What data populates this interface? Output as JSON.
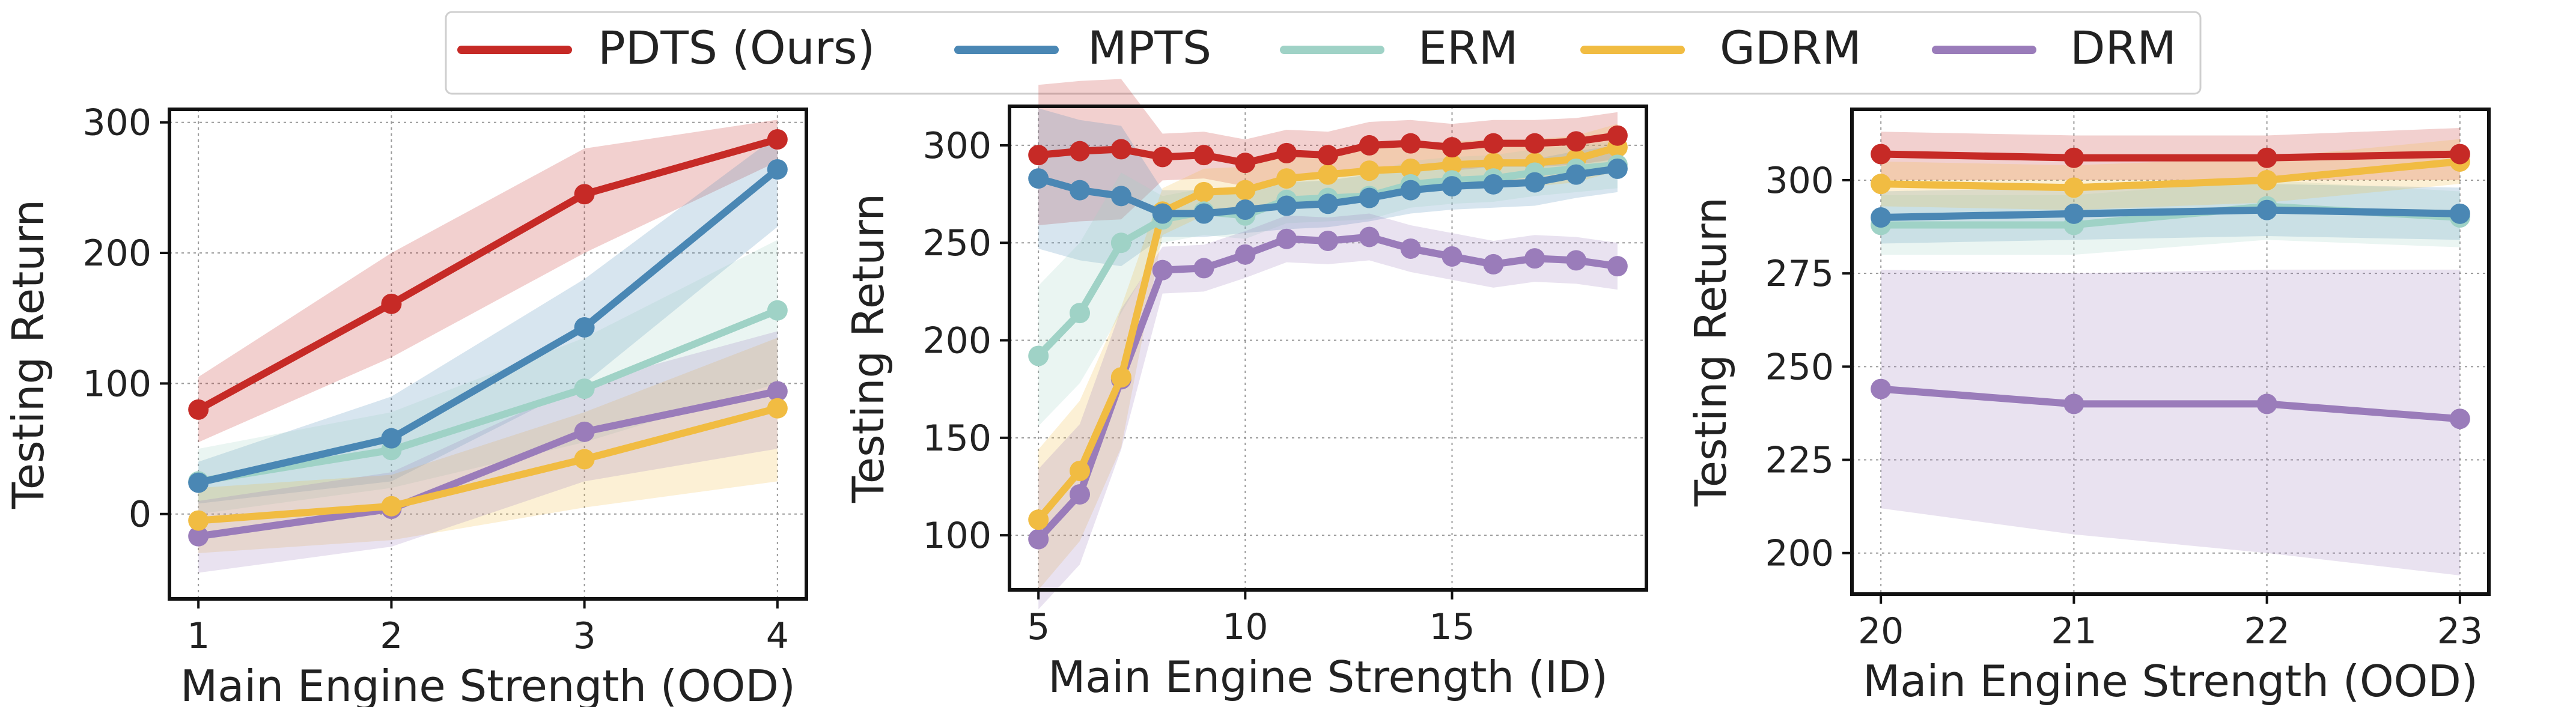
{
  "colors": {
    "PDTS (Ours)": "#c62a26",
    "MPTS": "#4a87b4",
    "ERM": "#9fd2c6",
    "GDRM": "#f1bc42",
    "DRM": "#9a7cba"
  },
  "legend": {
    "placement": "top-center",
    "entries": [
      "PDTS (Ours)",
      "MPTS",
      "ERM",
      "GDRM",
      "DRM"
    ]
  },
  "chart_data": [
    {
      "type": "line",
      "xlabel": "Main Engine Strength (OOD)",
      "ylabel": "Testing Return",
      "xlim": [
        0.85,
        4.15
      ],
      "ylim": [
        -65,
        310
      ],
      "xticks": [
        1,
        2,
        3,
        4
      ],
      "yticks": [
        0,
        100,
        200,
        300
      ],
      "grid": true,
      "x": [
        1,
        2,
        3,
        4
      ],
      "series": [
        {
          "name": "PDTS (Ours)",
          "values": [
            80,
            161,
            245,
            287
          ],
          "band": [
            [
              55,
              105
            ],
            [
              120,
              200
            ],
            [
              200,
              280
            ],
            [
              270,
              302
            ]
          ]
        },
        {
          "name": "MPTS",
          "values": [
            24,
            58,
            143,
            264
          ],
          "band": [
            [
              8,
              40
            ],
            [
              25,
              90
            ],
            [
              100,
              180
            ],
            [
              220,
              290
            ]
          ]
        },
        {
          "name": "ERM",
          "values": [
            25,
            49,
            96,
            156
          ],
          "band": [
            [
              0,
              50
            ],
            [
              20,
              78
            ],
            [
              55,
              135
            ],
            [
              100,
              210
            ]
          ]
        },
        {
          "name": "GDRM",
          "values": [
            -5,
            6,
            42,
            81
          ],
          "band": [
            [
              -30,
              20
            ],
            [
              -20,
              30
            ],
            [
              5,
              78
            ],
            [
              25,
              135
            ]
          ]
        },
        {
          "name": "DRM",
          "values": [
            -17,
            4,
            63,
            94
          ],
          "band": [
            [
              -45,
              10
            ],
            [
              -25,
              32
            ],
            [
              25,
              100
            ],
            [
              50,
              140
            ]
          ]
        }
      ]
    },
    {
      "type": "line",
      "xlabel": "Main Engine Strength (ID)",
      "ylabel": "Testing Return",
      "xlim": [
        4.3,
        19.7
      ],
      "ylim": [
        72,
        320
      ],
      "xticks": [
        5,
        10,
        15
      ],
      "yticks": [
        100,
        150,
        200,
        250,
        300
      ],
      "grid": true,
      "x": [
        5,
        6,
        7,
        8,
        9,
        10,
        11,
        12,
        13,
        14,
        15,
        16,
        17,
        18,
        19
      ],
      "series": [
        {
          "name": "PDTS (Ours)",
          "values": [
            295,
            297,
            298,
            294,
            295,
            291,
            296,
            295,
            300,
            301,
            299,
            301,
            301,
            302,
            305
          ]
        },
        {
          "name": "MPTS",
          "values": [
            283,
            277,
            274,
            265,
            265,
            267,
            269,
            270,
            273,
            277,
            279,
            280,
            281,
            285,
            288
          ]
        },
        {
          "name": "ERM",
          "values": [
            192,
            214,
            250,
            262,
            266,
            264,
            272,
            273,
            274,
            280,
            282,
            283,
            286,
            288,
            290
          ]
        },
        {
          "name": "GDRM",
          "values": [
            108,
            133,
            181,
            266,
            276,
            277,
            283,
            285,
            287,
            288,
            290,
            291,
            291,
            293,
            299
          ]
        },
        {
          "name": "DRM",
          "values": [
            98,
            121,
            180,
            236,
            237,
            244,
            252,
            251,
            253,
            247,
            243,
            239,
            242,
            241,
            238
          ]
        }
      ]
    },
    {
      "type": "line",
      "xlabel": "Main Engine Strength (OOD)",
      "ylabel": "Testing Return",
      "xlim": [
        19.85,
        23.15
      ],
      "ylim": [
        189,
        319
      ],
      "xticks": [
        20,
        21,
        22,
        23
      ],
      "yticks": [
        200,
        225,
        250,
        275,
        300
      ],
      "grid": true,
      "x": [
        20,
        21,
        22,
        23
      ],
      "series": [
        {
          "name": "PDTS (Ours)",
          "values": [
            307,
            306,
            306,
            307
          ],
          "band": [
            [
              300,
              313
            ],
            [
              300,
              312
            ],
            [
              300,
              312
            ],
            [
              300,
              314
            ]
          ]
        },
        {
          "name": "MPTS",
          "values": [
            290,
            291,
            292,
            291
          ],
          "band": [
            [
              283,
              297
            ],
            [
              284,
              298
            ],
            [
              285,
              299
            ],
            [
              284,
              298
            ]
          ]
        },
        {
          "name": "ERM",
          "values": [
            288,
            288,
            293,
            290
          ],
          "band": [
            [
              280,
              296
            ],
            [
              280,
              296
            ],
            [
              284,
              300
            ],
            [
              282,
              297
            ]
          ]
        },
        {
          "name": "GDRM",
          "values": [
            299,
            298,
            300,
            305
          ],
          "band": [
            [
              293,
              305
            ],
            [
              292,
              304
            ],
            [
              294,
              306
            ],
            [
              299,
              311
            ]
          ]
        },
        {
          "name": "DRM",
          "values": [
            244,
            240,
            240,
            236
          ],
          "band": [
            [
              212,
              276
            ],
            [
              205,
              275
            ],
            [
              200,
              276
            ],
            [
              194,
              276
            ]
          ]
        }
      ]
    }
  ]
}
